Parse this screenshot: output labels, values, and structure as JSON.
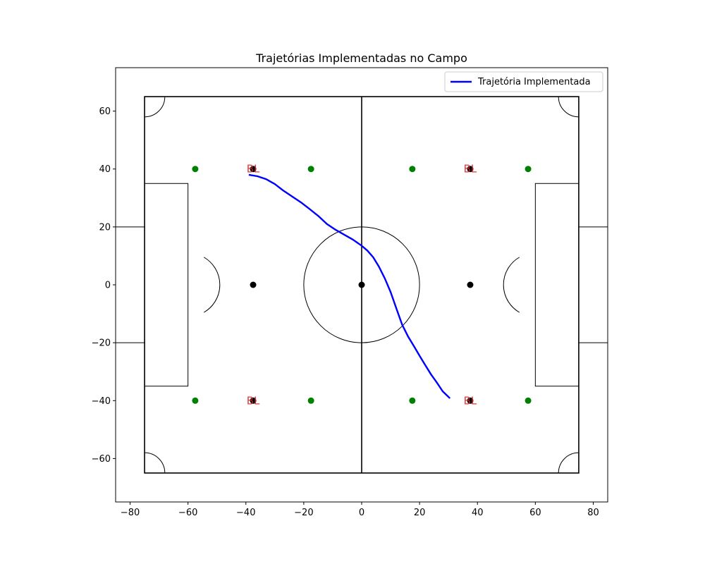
{
  "chart_data": {
    "type": "line",
    "title": "Trajetórias Implementadas no Campo",
    "xlim": [
      -85,
      85
    ],
    "ylim": [
      -75,
      75
    ],
    "x_ticks": [
      -80,
      -60,
      -40,
      -20,
      0,
      20,
      40,
      60,
      80
    ],
    "y_ticks": [
      -60,
      -40,
      -20,
      0,
      20,
      40,
      60
    ],
    "x_tick_labels": [
      "−80",
      "−60",
      "−40",
      "−20",
      "0",
      "20",
      "40",
      "60",
      "80"
    ],
    "y_tick_labels": [
      "−60",
      "−40",
      "−20",
      "0",
      "20",
      "40",
      "60"
    ],
    "grid": false,
    "legend_position": "top-right",
    "colors": {
      "field_lines": "#000000",
      "trajectory": "#0000ff",
      "green_points": "#008000",
      "black_points": "#000000",
      "marker_labels": "#d62728"
    },
    "field": {
      "length": 150,
      "width": 130,
      "center_circle_radius": 20,
      "penalty_box_depth": 15,
      "penalty_box_half_width": 35,
      "penalty_arc_radius": 11,
      "goal_depth": 10,
      "goal_half_width": 20,
      "corner_arc_radius": 7
    },
    "series": [
      {
        "name": "Trajetória Implementada",
        "x": [
          -39,
          -36,
          -33,
          -30,
          -27,
          -24,
          -21,
          -18,
          -15,
          -12,
          -9,
          -6,
          -3,
          0,
          2,
          4,
          6,
          8,
          10,
          12,
          14,
          16,
          18,
          20,
          22,
          24,
          26,
          28,
          30.5
        ],
        "y": [
          38,
          37.5,
          36.5,
          34.8,
          32.5,
          30.5,
          28.5,
          26.2,
          23.8,
          21,
          19,
          17.3,
          15.6,
          13.5,
          11.8,
          9.5,
          6.2,
          2.2,
          -2.5,
          -8.2,
          -13.8,
          -17.8,
          -21.1,
          -24.5,
          -27.8,
          -31,
          -33.8,
          -36.8,
          -39.2
        ]
      }
    ],
    "green_points": [
      {
        "x": -57.5,
        "y": 40
      },
      {
        "x": -17.5,
        "y": 40
      },
      {
        "x": 17.5,
        "y": 40
      },
      {
        "x": 57.5,
        "y": 40
      },
      {
        "x": -57.5,
        "y": -40
      },
      {
        "x": -17.5,
        "y": -40
      },
      {
        "x": 17.5,
        "y": -40
      },
      {
        "x": 57.5,
        "y": -40
      }
    ],
    "black_points": [
      {
        "x": -37.5,
        "y": 0
      },
      {
        "x": 0,
        "y": 0
      },
      {
        "x": 37.5,
        "y": 0
      },
      {
        "x": -37.5,
        "y": 40
      },
      {
        "x": 37.5,
        "y": 40
      },
      {
        "x": -37.5,
        "y": -40
      },
      {
        "x": 37.5,
        "y": -40
      }
    ],
    "marker_labels": [
      {
        "x": -37.5,
        "y": 40,
        "text": "BL"
      },
      {
        "x": 37.5,
        "y": 40,
        "text": "BL"
      },
      {
        "x": -37.5,
        "y": -40,
        "text": "BL"
      },
      {
        "x": 37.5,
        "y": -40,
        "text": "BL"
      }
    ]
  }
}
